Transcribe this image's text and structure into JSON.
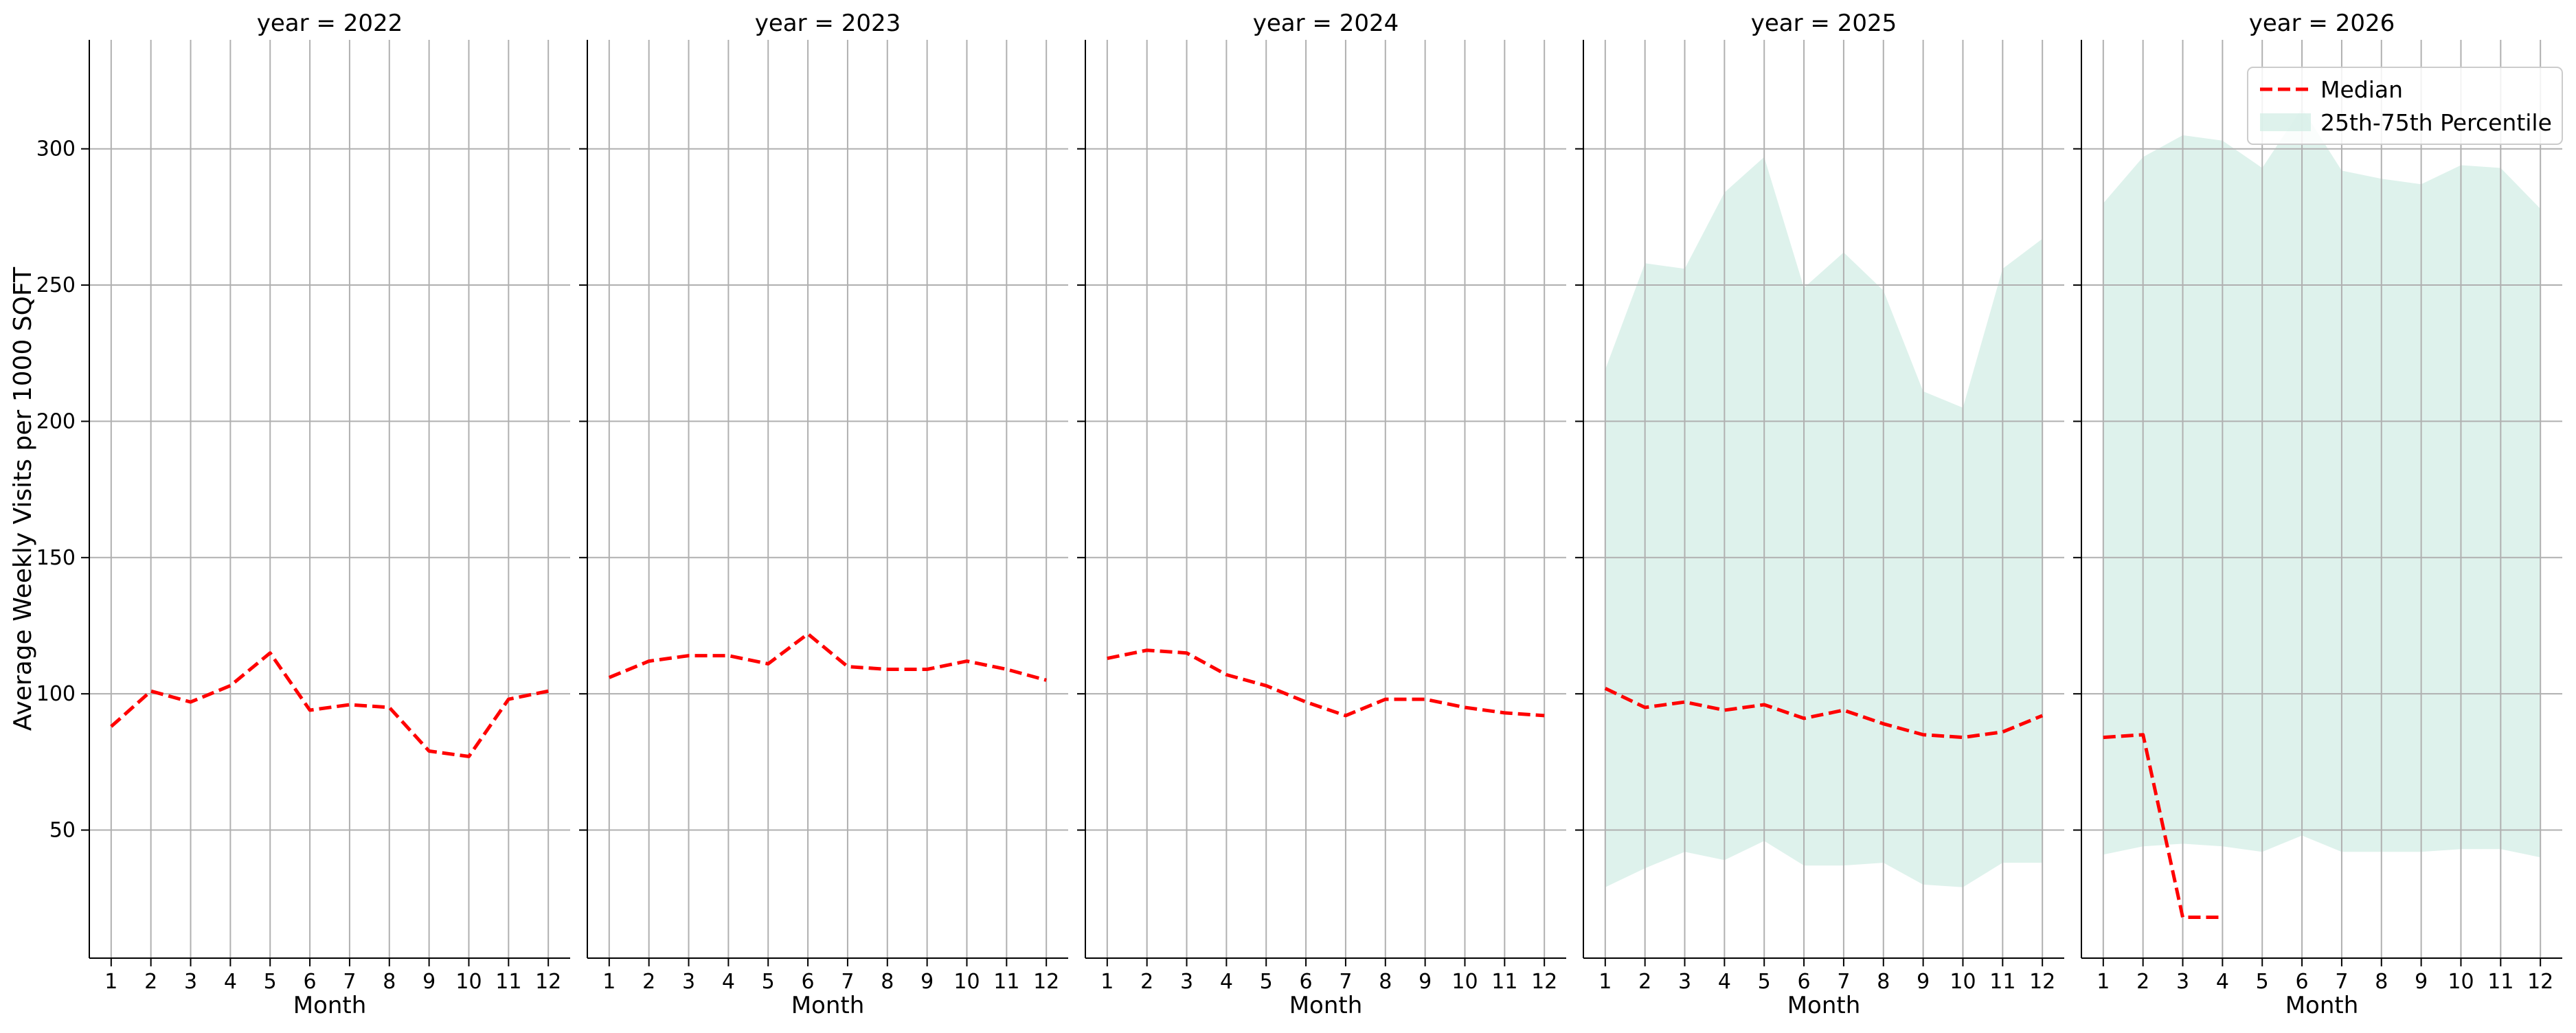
{
  "chart_data": {
    "type": "line",
    "ylabel": "Average Weekly Visits per 1000 SQFT",
    "xlabel": "Month",
    "ylim": [
      3,
      340
    ],
    "xlim": [
      0.45,
      12.55
    ],
    "yticks": [
      50,
      100,
      150,
      200,
      250,
      300
    ],
    "xticks": [
      1,
      2,
      3,
      4,
      5,
      6,
      7,
      8,
      9,
      10,
      11,
      12
    ],
    "grid": true,
    "legend_position": "top-right",
    "legend": {
      "median_label": "Median",
      "band_label": "25th-75th Percentile"
    },
    "colors": {
      "median": "#ff0000",
      "band": "#cdebe2",
      "grid": "#b0b0b0",
      "axis": "#000000"
    },
    "panels": [
      {
        "title": "year = 2022",
        "median": [
          {
            "x": 1,
            "y": 88
          },
          {
            "x": 2,
            "y": 101
          },
          {
            "x": 3,
            "y": 97
          },
          {
            "x": 4,
            "y": 103
          },
          {
            "x": 5,
            "y": 115
          },
          {
            "x": 6,
            "y": 94
          },
          {
            "x": 7,
            "y": 96
          },
          {
            "x": 8,
            "y": 95
          },
          {
            "x": 9,
            "y": 79
          },
          {
            "x": 10,
            "y": 77
          },
          {
            "x": 11,
            "y": 98
          },
          {
            "x": 12,
            "y": 101
          }
        ],
        "band": []
      },
      {
        "title": "year = 2023",
        "median": [
          {
            "x": 1,
            "y": 106
          },
          {
            "x": 2,
            "y": 112
          },
          {
            "x": 3,
            "y": 114
          },
          {
            "x": 4,
            "y": 114
          },
          {
            "x": 5,
            "y": 111
          },
          {
            "x": 6,
            "y": 122
          },
          {
            "x": 7,
            "y": 110
          },
          {
            "x": 8,
            "y": 109
          },
          {
            "x": 9,
            "y": 109
          },
          {
            "x": 10,
            "y": 112
          },
          {
            "x": 11,
            "y": 109
          },
          {
            "x": 12,
            "y": 105
          }
        ],
        "band": []
      },
      {
        "title": "year = 2024",
        "median": [
          {
            "x": 1,
            "y": 113
          },
          {
            "x": 2,
            "y": 116
          },
          {
            "x": 3,
            "y": 115
          },
          {
            "x": 4,
            "y": 107
          },
          {
            "x": 5,
            "y": 103
          },
          {
            "x": 6,
            "y": 97
          },
          {
            "x": 7,
            "y": 92
          },
          {
            "x": 8,
            "y": 98
          },
          {
            "x": 9,
            "y": 98
          },
          {
            "x": 10,
            "y": 95
          },
          {
            "x": 11,
            "y": 93
          },
          {
            "x": 12,
            "y": 92
          }
        ],
        "band": []
      },
      {
        "title": "year = 2025",
        "median": [
          {
            "x": 1,
            "y": 102
          },
          {
            "x": 2,
            "y": 95
          },
          {
            "x": 3,
            "y": 97
          },
          {
            "x": 4,
            "y": 94
          },
          {
            "x": 5,
            "y": 96
          },
          {
            "x": 6,
            "y": 91
          },
          {
            "x": 7,
            "y": 94
          },
          {
            "x": 8,
            "y": 89
          },
          {
            "x": 9,
            "y": 85
          },
          {
            "x": 10,
            "y": 84
          },
          {
            "x": 11,
            "y": 86
          },
          {
            "x": 12,
            "y": 92
          }
        ],
        "band": [
          {
            "x": 1,
            "low": 29,
            "high": 219
          },
          {
            "x": 2,
            "low": 36,
            "high": 258
          },
          {
            "x": 3,
            "low": 42,
            "high": 256
          },
          {
            "x": 4,
            "low": 39,
            "high": 284
          },
          {
            "x": 5,
            "low": 46,
            "high": 297
          },
          {
            "x": 6,
            "low": 37,
            "high": 249
          },
          {
            "x": 7,
            "low": 37,
            "high": 262
          },
          {
            "x": 8,
            "low": 38,
            "high": 248
          },
          {
            "x": 9,
            "low": 30,
            "high": 211
          },
          {
            "x": 10,
            "low": 29,
            "high": 205
          },
          {
            "x": 11,
            "low": 38,
            "high": 256
          },
          {
            "x": 12,
            "low": 38,
            "high": 267
          }
        ]
      },
      {
        "title": "year = 2026",
        "median": [
          {
            "x": 1,
            "y": 84
          },
          {
            "x": 2,
            "y": 85
          },
          {
            "x": 3,
            "y": 18
          },
          {
            "x": 4,
            "y": 18
          }
        ],
        "band": [
          {
            "x": 1,
            "low": 41,
            "high": 280
          },
          {
            "x": 2,
            "low": 44,
            "high": 297
          },
          {
            "x": 3,
            "low": 45,
            "high": 305
          },
          {
            "x": 4,
            "low": 44,
            "high": 303
          },
          {
            "x": 5,
            "low": 42,
            "high": 293
          },
          {
            "x": 6,
            "low": 48,
            "high": 315
          },
          {
            "x": 7,
            "low": 42,
            "high": 292
          },
          {
            "x": 8,
            "low": 42,
            "high": 289
          },
          {
            "x": 9,
            "low": 42,
            "high": 287
          },
          {
            "x": 10,
            "low": 43,
            "high": 294
          },
          {
            "x": 11,
            "low": 43,
            "high": 293
          },
          {
            "x": 12,
            "low": 40,
            "high": 278
          }
        ]
      }
    ]
  }
}
